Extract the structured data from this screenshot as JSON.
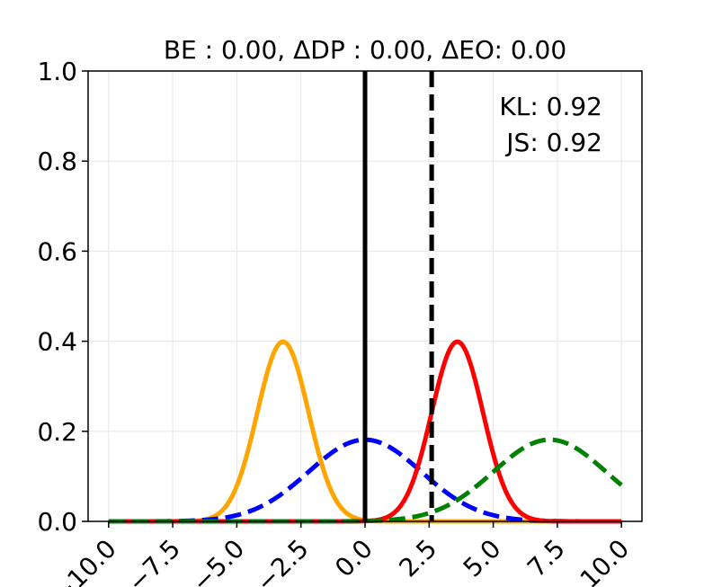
{
  "chart_data": {
    "type": "line",
    "title": "BE : 0.00, ΔDP : 0.00, ΔEO: 0.00",
    "xlabel": "",
    "ylabel": "",
    "xlim": [
      -10.8,
      10.8
    ],
    "ylim": [
      0,
      1
    ],
    "grid": true,
    "x_ticks": [
      -10.0,
      -7.5,
      -5.0,
      -2.5,
      0.0,
      2.5,
      5.0,
      7.5,
      10.0
    ],
    "x_tick_labels": [
      "−10.0",
      "−7.5",
      "−5.0",
      "−2.5",
      "0.0",
      "2.5",
      "5.0",
      "7.5",
      "10.0"
    ],
    "y_ticks": [
      0.0,
      0.2,
      0.4,
      0.6,
      0.8,
      1.0
    ],
    "y_tick_labels": [
      "0.0",
      "0.2",
      "0.4",
      "0.6",
      "0.8",
      "1.0"
    ],
    "annotations": [
      "KL: 0.92",
      "JS: 0.92"
    ],
    "series": [
      {
        "kind": "gaussian",
        "mean": -3.2,
        "std": 1.0,
        "color": "#ffa500",
        "style": "solid"
      },
      {
        "kind": "gaussian",
        "mean": 0.0,
        "std": 2.2,
        "color": "#0000ff",
        "style": "dashed"
      },
      {
        "kind": "gaussian",
        "mean": 3.6,
        "std": 1.0,
        "color": "#ff0000",
        "style": "solid"
      },
      {
        "kind": "gaussian",
        "mean": 7.2,
        "std": 2.2,
        "color": "#008000",
        "style": "dashed"
      }
    ],
    "vertical_lines": [
      {
        "x": 0.0,
        "color": "#000000",
        "style": "solid"
      },
      {
        "x": 2.6,
        "color": "#000000",
        "style": "dashed"
      }
    ]
  }
}
